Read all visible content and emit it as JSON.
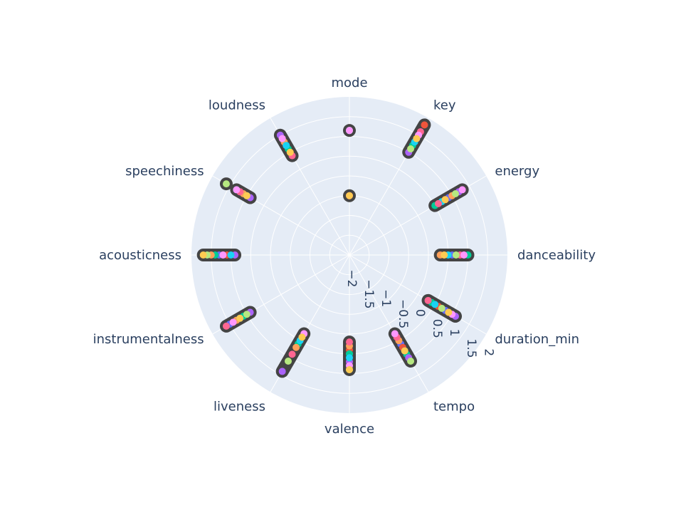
{
  "chart_data": {
    "type": "scatter",
    "subtype": "polar",
    "grid": true,
    "theme": {
      "plot_bg": "#e5ecf6",
      "grid_color": "#ffffff",
      "text_color": "#2a3f5f",
      "marker_outline": "#444444"
    },
    "angular_axis": {
      "direction": "clockwise",
      "categories": [
        "danceability",
        "duration_min",
        "tempo",
        "valence",
        "liveness",
        "instrumentalness",
        "acousticness",
        "speechiness",
        "loudness",
        "mode",
        "key",
        "energy"
      ],
      "category_angles_deg": [
        0,
        30,
        60,
        90,
        120,
        150,
        180,
        210,
        240,
        270,
        300,
        330
      ]
    },
    "radial_axis": {
      "range": [
        -2,
        2
      ],
      "ticks": [
        -2,
        -1.5,
        -1,
        -0.5,
        0,
        0.5,
        1,
        1.5,
        2
      ],
      "tick_labels": [
        "−2",
        "−1.5",
        "−1",
        "−0.5",
        "0",
        "0.5",
        "1",
        "1.5",
        "2"
      ],
      "angle_deg": 30
    },
    "colors": [
      "#636efa",
      "#EF553B",
      "#00cc96",
      "#ab63fa",
      "#FFA15A",
      "#19d3f3",
      "#FF6692",
      "#B6E880",
      "#FF97FF",
      "#FECB52"
    ],
    "series": [
      {
        "values": [
          0.6,
          0.8,
          0.6,
          0.5,
          0.4,
          1.5,
          1.3,
          1.2,
          1.2,
          1.15,
          1.4,
          0.9
        ]
      },
      {
        "values": [
          0.4,
          0.6,
          0.7,
          0.4,
          0.3,
          1.4,
          1.1,
          1.0,
          1.0,
          -0.5,
          1.8,
          0.8
        ]
      },
      {
        "values": [
          1.0,
          0.4,
          0.9,
          0.5,
          0.6,
          1.1,
          1.4,
          1.3,
          1.1,
          1.15,
          1.2,
          0.5
        ]
      },
      {
        "values": [
          0.9,
          1.1,
          1.0,
          0.7,
          1.4,
          0.9,
          0.9,
          0.9,
          1.5,
          1.15,
          1.0,
          1.2
        ]
      },
      {
        "values": [
          0.3,
          0.9,
          0.5,
          0.3,
          0.7,
          1.3,
          1.5,
          1.1,
          1.3,
          1.15,
          1.5,
          1.0
        ]
      },
      {
        "values": [
          0.5,
          0.5,
          0.8,
          0.6,
          0.5,
          1.2,
          1.0,
          1.0,
          1.2,
          1.15,
          1.3,
          0.7
        ]
      },
      {
        "values": [
          0.8,
          0.3,
          0.4,
          0.2,
          0.9,
          1.6,
          1.2,
          1.2,
          0.9,
          -0.5,
          1.6,
          0.6
        ]
      },
      {
        "values": [
          0.7,
          0.7,
          1.1,
          0.9,
          1.1,
          1.0,
          1.6,
          1.6,
          1.4,
          1.15,
          1.1,
          1.1
        ]
      },
      {
        "values": [
          0.9,
          1.0,
          0.3,
          0.8,
          0.3,
          1.4,
          1.2,
          1.3,
          1.4,
          1.15,
          1.5,
          1.3
        ]
      },
      {
        "values": [
          0.4,
          0.9,
          0.8,
          0.9,
          0.4,
          1.2,
          1.7,
          1.0,
          1.0,
          -0.5,
          1.4,
          0.8
        ]
      }
    ]
  }
}
